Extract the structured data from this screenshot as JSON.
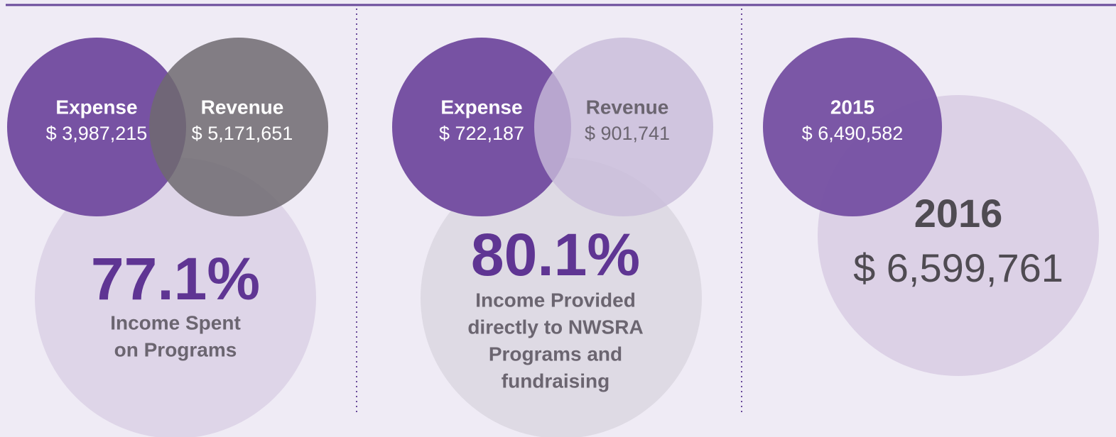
{
  "panels": [
    {
      "circles": [
        {
          "label": "Expense",
          "value": "$ 3,987,215"
        },
        {
          "label": "Revenue",
          "value": "$ 5,171,651"
        }
      ],
      "stat": "77.1%",
      "caption": [
        "Income Spent",
        "on Programs"
      ]
    },
    {
      "circles": [
        {
          "label": "Expense",
          "value": "$ 722,187"
        },
        {
          "label": "Revenue",
          "value": "$ 901,741"
        }
      ],
      "stat": "80.1%",
      "caption": [
        "Income Provided",
        "directly to NWSRA",
        "Programs and",
        "fundraising"
      ]
    },
    {
      "circles": [
        {
          "label": "2015",
          "value": "$ 6,490,582"
        },
        {
          "label": "2016",
          "value": "$ 6,599,761"
        }
      ]
    }
  ]
}
